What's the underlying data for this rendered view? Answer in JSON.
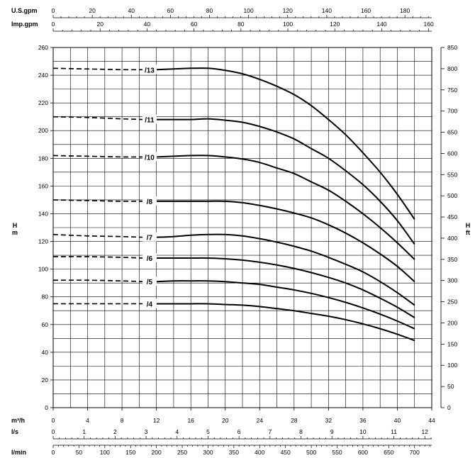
{
  "chart_data": {
    "type": "line",
    "title": "",
    "xlabel": "m³/h",
    "ylabel": "H m",
    "ylabel_right": "H ft",
    "xlim": [
      0,
      44
    ],
    "ylim": [
      0,
      260
    ],
    "ylim_ft": [
      0,
      850
    ],
    "grid": true,
    "line_color": "#000000",
    "x_ticks": [
      0,
      4,
      8,
      12,
      16,
      20,
      24,
      28,
      32,
      36,
      40,
      44
    ],
    "y_ticks": [
      0,
      20,
      40,
      60,
      80,
      100,
      120,
      140,
      160,
      180,
      200,
      220,
      240,
      260
    ],
    "y_ticks_ft": [
      0,
      50,
      100,
      150,
      200,
      250,
      300,
      350,
      400,
      450,
      500,
      550,
      600,
      650,
      700,
      750,
      800,
      850
    ],
    "top_axes": [
      {
        "label": "U.S.gpm",
        "max_flow": 44,
        "factor": 4.4029,
        "ticks": [
          0,
          20,
          40,
          60,
          80,
          100,
          120,
          140,
          160,
          180
        ]
      },
      {
        "label": "Imp.gpm",
        "max_flow": 44,
        "factor": 3.6662,
        "ticks": [
          0,
          20,
          40,
          60,
          80,
          100,
          120,
          140,
          160
        ]
      }
    ],
    "bottom_axes": [
      {
        "label": "l/s",
        "factor": 0.27778,
        "ticks": [
          0,
          1,
          2,
          3,
          4,
          5,
          6,
          7,
          8,
          9,
          10,
          11,
          12
        ]
      },
      {
        "label": "l/min",
        "factor": 16.6667,
        "ticks": [
          0,
          50,
          100,
          150,
          200,
          250,
          300,
          350,
          400,
          450,
          500,
          550,
          600,
          650,
          700
        ]
      }
    ],
    "series": [
      {
        "name": "/13",
        "dashed": {
          "x": [
            0,
            4,
            8,
            10.5
          ],
          "y": [
            245,
            244.5,
            244,
            244
          ]
        },
        "solid": {
          "x": [
            12,
            14,
            16,
            18,
            20,
            22,
            24,
            26,
            28,
            30,
            32,
            34,
            36,
            38,
            40,
            42
          ],
          "y": [
            244,
            244.5,
            245,
            245,
            243.5,
            241,
            237,
            232,
            226,
            218,
            208,
            197,
            184,
            170,
            154,
            136
          ]
        }
      },
      {
        "name": "/11",
        "dashed": {
          "x": [
            0,
            4,
            8,
            10.5
          ],
          "y": [
            210,
            209.5,
            208.5,
            208
          ]
        },
        "solid": {
          "x": [
            12,
            14,
            16,
            18,
            20,
            22,
            24,
            26,
            28,
            30,
            32,
            34,
            36,
            38,
            40,
            42
          ],
          "y": [
            208,
            208,
            208,
            208.5,
            207.5,
            206,
            203,
            199,
            194,
            187,
            180,
            171,
            161,
            149,
            135,
            118
          ]
        }
      },
      {
        "name": "/10",
        "dashed": {
          "x": [
            0,
            4,
            8,
            10.5
          ],
          "y": [
            182,
            181.5,
            181,
            181
          ]
        },
        "solid": {
          "x": [
            12,
            14,
            16,
            18,
            20,
            22,
            24,
            26,
            28,
            30,
            32,
            34,
            36,
            38,
            40,
            42
          ],
          "y": [
            181,
            181.5,
            182,
            182,
            181,
            179.5,
            177,
            173,
            169,
            163,
            157,
            149,
            140,
            130,
            119,
            107
          ]
        }
      },
      {
        "name": "/8",
        "dashed": {
          "x": [
            0,
            4,
            8,
            10.5
          ],
          "y": [
            150,
            149.5,
            149,
            149
          ]
        },
        "solid": {
          "x": [
            12,
            14,
            16,
            18,
            20,
            22,
            24,
            26,
            28,
            30,
            32,
            34,
            36,
            38,
            40,
            42
          ],
          "y": [
            149,
            149,
            149,
            149,
            149,
            148,
            146,
            143.5,
            140.5,
            137,
            132,
            126,
            119,
            111,
            102,
            91
          ]
        }
      },
      {
        "name": "/7",
        "dashed": {
          "x": [
            0,
            4,
            8,
            10.5
          ],
          "y": [
            125,
            124,
            123.5,
            123
          ]
        },
        "solid": {
          "x": [
            12,
            14,
            16,
            18,
            20,
            22,
            24,
            26,
            28,
            30,
            32,
            34,
            36,
            38,
            40,
            42
          ],
          "y": [
            123,
            123.5,
            124.5,
            125,
            125,
            124,
            122,
            119.5,
            116.5,
            113,
            108.5,
            103.5,
            98,
            91,
            83,
            74
          ]
        }
      },
      {
        "name": "/6",
        "dashed": {
          "x": [
            0,
            4,
            8,
            10.5
          ],
          "y": [
            109,
            109,
            108.5,
            108
          ]
        },
        "solid": {
          "x": [
            12,
            14,
            16,
            18,
            20,
            22,
            24,
            26,
            28,
            30,
            32,
            34,
            36,
            38,
            40,
            42
          ],
          "y": [
            108,
            108,
            108,
            108,
            107.5,
            106.5,
            105,
            103,
            100.5,
            97.5,
            94,
            90,
            85,
            79,
            72.5,
            65
          ]
        }
      },
      {
        "name": "/5",
        "dashed": {
          "x": [
            0,
            4,
            8,
            10.5
          ],
          "y": [
            92,
            92,
            91.5,
            91
          ]
        },
        "solid": {
          "x": [
            12,
            14,
            16,
            18,
            20,
            22,
            24,
            26,
            28,
            30,
            32,
            34,
            36,
            38,
            40,
            42
          ],
          "y": [
            91,
            91.5,
            91.5,
            91.5,
            91,
            90,
            89,
            87,
            85,
            82.5,
            79.5,
            76,
            72,
            67.5,
            62.5,
            57
          ]
        }
      },
      {
        "name": "/4",
        "dashed": {
          "x": [
            0,
            4,
            8,
            10.5
          ],
          "y": [
            75,
            75,
            75,
            75
          ]
        },
        "solid": {
          "x": [
            12,
            14,
            16,
            18,
            20,
            22,
            24,
            26,
            28,
            30,
            32,
            34,
            36,
            38,
            40,
            42
          ],
          "y": [
            75,
            75,
            75,
            75,
            74.5,
            74,
            73,
            71.5,
            70,
            68,
            66,
            63.5,
            60.5,
            57,
            53,
            48.5
          ]
        }
      }
    ]
  }
}
